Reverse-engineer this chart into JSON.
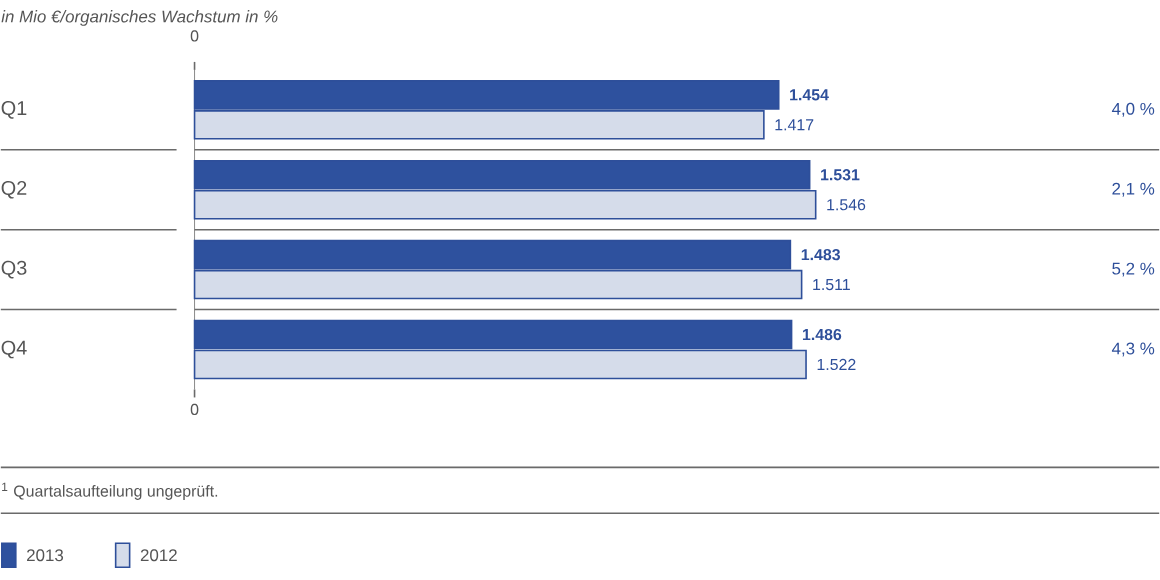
{
  "chart_data": {
    "type": "bar",
    "orientation": "horizontal",
    "title": "in Mio €/organisches Wachstum in %",
    "categories": [
      "Q1",
      "Q2",
      "Q3",
      "Q4"
    ],
    "series": [
      {
        "name": "2013",
        "color": "#2e519e",
        "values": [
          1454,
          1531,
          1483,
          1486
        ],
        "value_labels": [
          "1.454",
          "1.531",
          "1.483",
          "1.486"
        ]
      },
      {
        "name": "2012",
        "color": "#d5dcea",
        "values": [
          1417,
          1546,
          1511,
          1522
        ],
        "value_labels": [
          "1.417",
          "1.546",
          "1.511",
          "1.522"
        ]
      }
    ],
    "annotations": [
      "4,0 %",
      "2,1 %",
      "5,2 %",
      "4,3 %",
      "0",
      "0",
      "$^{1}$ Quartalsaufteilung ungeprüft."
    ],
    "legend": "bottom left"
  }
}
